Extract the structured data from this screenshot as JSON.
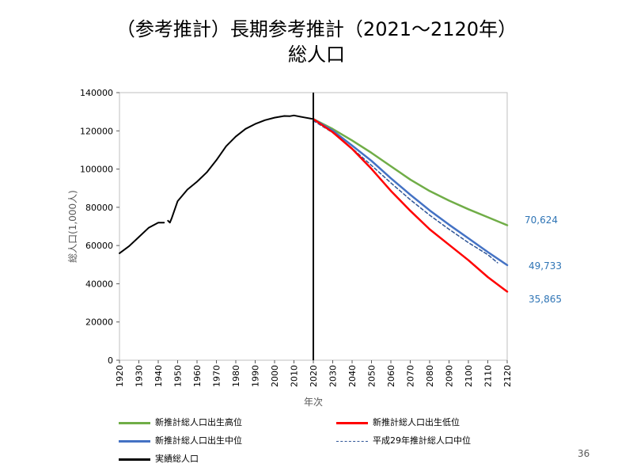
{
  "header": {
    "title_line1": "（参考推計）長期参考推計（2021～2120年）",
    "title_line2": "総人口"
  },
  "page_number": "36",
  "end_labels": [
    "70,624",
    "49,733",
    "35,865"
  ],
  "legend": [
    {
      "label": "新推計総人口出生高位",
      "color": "#70ad47",
      "style": "solid"
    },
    {
      "label": "新推計総人口出生低位",
      "color": "#ff0000",
      "style": "solid"
    },
    {
      "label": "新推計総人口出生中位",
      "color": "#4472c4",
      "style": "solid"
    },
    {
      "label": "平成29年推計総人口中位",
      "color": "#2f5597",
      "style": "dashed"
    },
    {
      "label": "実績総人口",
      "color": "#000000",
      "style": "solid"
    }
  ],
  "chart_data": {
    "type": "line",
    "xlabel": "年次",
    "ylabel": "総人口(1,000人)",
    "xlim": [
      1920,
      2120
    ],
    "ylim": [
      0,
      140000
    ],
    "xticks": [
      1920,
      1930,
      1940,
      1950,
      1960,
      1970,
      1980,
      1990,
      2000,
      2010,
      2020,
      2030,
      2040,
      2050,
      2060,
      2070,
      2080,
      2090,
      2100,
      2110,
      2120
    ],
    "yticks": [
      0,
      20000,
      40000,
      60000,
      80000,
      100000,
      120000,
      140000
    ],
    "vline_x": 2020,
    "grid": false,
    "series": [
      {
        "name": "実績総人口",
        "color": "#000000",
        "dash": false,
        "width": 2,
        "x": [
          1920,
          1925,
          1930,
          1935,
          1940,
          1943
        ],
        "y": [
          55963,
          59737,
          64450,
          69254,
          71933,
          72000
        ]
      },
      {
        "name": "実績総人口",
        "color": "#000000",
        "dash": false,
        "width": 2,
        "x": [
          1945,
          1946,
          1947,
          1950,
          1955,
          1960,
          1965,
          1970,
          1975,
          1980,
          1985,
          1990,
          1995,
          2000,
          2005,
          2008,
          2010,
          2015,
          2020
        ],
        "y": [
          73000,
          72000,
          74500,
          83200,
          89276,
          93419,
          98275,
          104665,
          111940,
          117060,
          121049,
          123611,
          125570,
          126926,
          127768,
          127692,
          128057,
          127095,
          126146
        ]
      },
      {
        "name": "新推計総人口出生高位",
        "color": "#70ad47",
        "dash": false,
        "width": 2.5,
        "x": [
          2020,
          2030,
          2040,
          2050,
          2060,
          2070,
          2080,
          2090,
          2100,
          2110,
          2120
        ],
        "y": [
          126146,
          121000,
          115000,
          108500,
          101500,
          94500,
          88500,
          83500,
          79000,
          74800,
          70624
        ]
      },
      {
        "name": "新推計総人口出生中位",
        "color": "#4472c4",
        "dash": false,
        "width": 2.5,
        "x": [
          2020,
          2030,
          2040,
          2050,
          2060,
          2070,
          2080,
          2090,
          2100,
          2110,
          2120
        ],
        "y": [
          126146,
          120100,
          112300,
          104300,
          95200,
          86600,
          78400,
          70900,
          63800,
          56600,
          49733
        ]
      },
      {
        "name": "平成29年推計総人口中位",
        "color": "#2f5597",
        "dash": true,
        "width": 1.5,
        "x": [
          2020,
          2030,
          2040,
          2050,
          2060,
          2070,
          2080,
          2090,
          2100,
          2110,
          2115
        ],
        "y": [
          125300,
          119100,
          110900,
          101900,
          92800,
          84000,
          75900,
          68500,
          61500,
          55200,
          51000
        ]
      },
      {
        "name": "新推計総人口出生低位",
        "color": "#ff0000",
        "dash": false,
        "width": 2.5,
        "x": [
          2020,
          2030,
          2040,
          2050,
          2060,
          2070,
          2080,
          2090,
          2100,
          2110,
          2120
        ],
        "y": [
          126146,
          119300,
          110600,
          100100,
          88600,
          78200,
          68500,
          60400,
          52300,
          43500,
          35865
        ]
      }
    ]
  }
}
